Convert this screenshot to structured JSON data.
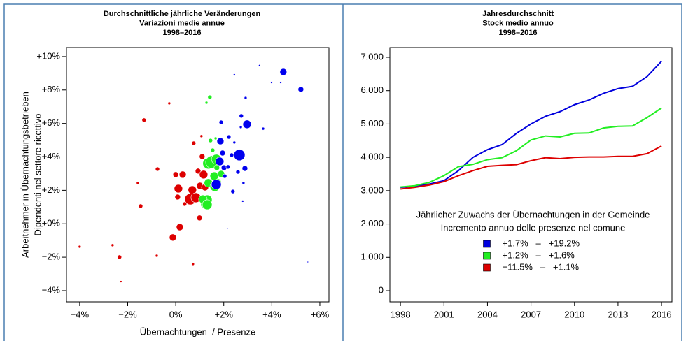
{
  "chart_data": [
    {
      "type": "scatter",
      "title": [
        "Durchschnittliche jährliche Veränderungen",
        "Variazioni medie annue",
        "1998–2016"
      ],
      "x_label": "Übernachtungen  / Presenze",
      "y_label": [
        "Arbeitnehmer in Übernachtungsbetrieben",
        "Dipendenti nel settore ricettivo"
      ],
      "xlim": [
        -4.55,
        6.38
      ],
      "ylim": [
        -4.67,
        10.54
      ],
      "xticks": [
        {
          "value": -4,
          "label": "−4%"
        },
        {
          "value": -2,
          "label": "−2%"
        },
        {
          "value": 0,
          "label": "0%"
        },
        {
          "value": 2,
          "label": "+2%"
        },
        {
          "value": 4,
          "label": "+4%"
        },
        {
          "value": 6,
          "label": "+6%"
        }
      ],
      "yticks": [
        {
          "value": -4,
          "label": "−4%"
        },
        {
          "value": -2,
          "label": "−2%"
        },
        {
          "value": 0,
          "label": "+0%"
        },
        {
          "value": 2,
          "label": "+2%"
        },
        {
          "value": 4,
          "label": "+4%"
        },
        {
          "value": 6,
          "label": "+6%"
        },
        {
          "value": 8,
          "label": "+8%"
        },
        {
          "value": 10,
          "label": "+10%"
        }
      ],
      "series": [
        {
          "color": "#dd0000",
          "x": [
            -4.0,
            -2.63,
            -2.34,
            -2.28,
            -1.58,
            -1.46,
            -1.32,
            -0.79,
            -0.76,
            -0.27,
            -0.12,
            0.17,
            0.0,
            0.11,
            0.08,
            0.29,
            0.37,
            0.49,
            0.61,
            0.69,
            0.72,
            0.84,
            0.93,
            0.99,
            0.75,
            1.01,
            1.07,
            1.16,
            1.22,
            1.1
          ],
          "y": [
            -1.37,
            -1.28,
            -1.99,
            -3.46,
            2.44,
            1.06,
            6.2,
            -1.91,
            3.27,
            7.2,
            -0.82,
            -0.2,
            2.94,
            2.1,
            1.6,
            2.94,
            1.18,
            1.56,
            1.47,
            2.02,
            -2.41,
            1.56,
            3.15,
            0.35,
            4.82,
            2.27,
            5.24,
            2.94,
            2.18,
            4.02
          ],
          "sizes": [
            2,
            2,
            3,
            1.5,
            2,
            3,
            3,
            2,
            3,
            2,
            5,
            5,
            4,
            6,
            4,
            5,
            3,
            4,
            8,
            6,
            2,
            7,
            4,
            4,
            3,
            5,
            2,
            6,
            5,
            4
          ]
        },
        {
          "color": "#22ee22",
          "x": [
            1.36,
            1.42,
            1.28,
            1.51,
            1.36,
            1.63,
            1.6,
            1.69,
            1.45,
            1.54,
            1.31,
            1.19,
            1.13,
            1.31,
            1.89,
            1.71,
            1.77,
            1.66
          ],
          "y": [
            3.61,
            7.57,
            7.24,
            3.69,
            2.44,
            2.23,
            2.85,
            3.86,
            4.98,
            4.4,
            1.43,
            1.14,
            1.47,
            1.14,
            2.98,
            3.35,
            2.52,
            5.11
          ],
          "sizes": [
            8,
            3,
            2,
            9,
            6,
            7,
            6,
            7,
            3,
            3,
            7,
            5,
            6,
            7,
            5,
            4,
            4,
            2
          ]
        },
        {
          "color": "#0000ee",
          "x": [
            1.69,
            1.86,
            1.95,
            1.83,
            2.01,
            2.04,
            2.18,
            2.21,
            2.33,
            1.89,
            2.15,
            2.38,
            2.44,
            2.65,
            2.71,
            2.59,
            2.73,
            2.79,
            2.88,
            2.91,
            2.97,
            2.44,
            2.82,
            3.49,
            3.64,
            3.99,
            4.48,
            4.37,
            5.21,
            5.5
          ],
          "y": [
            2.35,
            4.94,
            4.23,
            3.73,
            3.35,
            2.85,
            3.4,
            5.19,
            4.11,
            6.07,
            -0.28,
            1.93,
            4.86,
            4.11,
            5.78,
            3.1,
            6.45,
            1.35,
            3.31,
            7.53,
            5.95,
            8.91,
            2.44,
            9.46,
            5.69,
            8.45,
            9.08,
            8.45,
            8.04,
            -2.29
          ],
          "sizes": [
            7,
            5,
            4,
            6,
            4,
            3,
            3,
            3,
            3,
            3,
            1,
            3,
            2,
            8,
            2,
            3,
            3,
            1.5,
            4,
            2,
            6,
            1.5,
            2,
            1.5,
            2,
            1.5,
            5,
            1.5,
            4,
            1
          ]
        }
      ]
    },
    {
      "type": "line",
      "title": [
        "Jahresdurchschnitt",
        "Stock medio annuo",
        "1998–2016"
      ],
      "legend_title": [
        "Jährlicher Zuwachs der Übernachtungen in der Gemeinde",
        "Incremento annuo delle presenze nel comune"
      ],
      "legend": "center",
      "x": [
        1998,
        1999,
        2000,
        2001,
        2002,
        2003,
        2004,
        2005,
        2006,
        2007,
        2008,
        2009,
        2010,
        2011,
        2012,
        2013,
        2014,
        2015,
        2016
      ],
      "xlim": [
        1997.27,
        2016.72
      ],
      "ylim": [
        -335,
        7293
      ],
      "xticks": [
        1998,
        2001,
        2004,
        2007,
        2010,
        2013,
        2016
      ],
      "yticks": [
        0,
        {
          "value": 1000,
          "label": "1.000"
        },
        {
          "value": 2000,
          "label": "2.000"
        },
        {
          "value": 3000,
          "label": "3.000"
        },
        {
          "value": 4000,
          "label": "4.000"
        },
        {
          "value": 5000,
          "label": "5.000"
        },
        {
          "value": 6000,
          "label": "6.000"
        },
        {
          "value": 7000,
          "label": "7.000"
        }
      ],
      "series": [
        {
          "name": "+1.7%   –   +19.2%",
          "color": "#0000dd",
          "values": [
            3100,
            3130,
            3200,
            3300,
            3600,
            4000,
            4230,
            4380,
            4720,
            5000,
            5230,
            5370,
            5580,
            5720,
            5920,
            6060,
            6130,
            6420,
            6880
          ]
        },
        {
          "name": "+1.2%   –   +1.6%",
          "color": "#22ee22",
          "values": [
            3110,
            3150,
            3250,
            3450,
            3720,
            3790,
            3930,
            3990,
            4200,
            4520,
            4640,
            4610,
            4720,
            4730,
            4880,
            4930,
            4940,
            5190,
            5480
          ]
        },
        {
          "name": "−11.5%   –   +1.1%",
          "color": "#dd0000",
          "values": [
            3050,
            3100,
            3170,
            3270,
            3450,
            3600,
            3730,
            3760,
            3780,
            3900,
            3990,
            3960,
            4000,
            4010,
            4010,
            4030,
            4030,
            4110,
            4340
          ]
        }
      ]
    }
  ]
}
